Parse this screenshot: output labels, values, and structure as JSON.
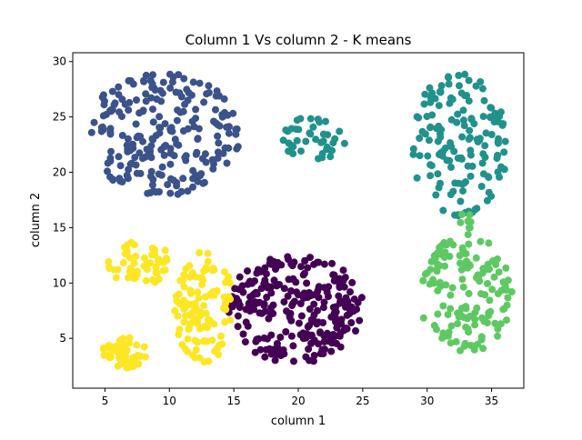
{
  "chart_data": {
    "type": "scatter",
    "title": "Column 1 Vs column 2 - K means",
    "xlabel": "column 1",
    "ylabel": "column 2",
    "xlim": [
      2.5,
      37.5
    ],
    "ylim": [
      0.5,
      30.8
    ],
    "xticks": [
      5,
      10,
      15,
      20,
      25,
      30,
      35
    ],
    "yticks": [
      5,
      10,
      15,
      20,
      25,
      30
    ],
    "grid": false,
    "series": [
      {
        "name": "",
        "color": "#440154",
        "blobs": [
          {
            "cx": 19.8,
            "cy": 7.7,
            "rx": 5.3,
            "ry": 5.0,
            "n": 260
          }
        ]
      },
      {
        "name": "",
        "color": "#3b528b",
        "blobs": [
          {
            "cx": 9.5,
            "cy": 23.5,
            "rx": 6.0,
            "ry": 5.6,
            "n": 230
          }
        ]
      },
      {
        "name": "",
        "color": "#21918c",
        "blobs": [
          {
            "cx": 21.5,
            "cy": 23.0,
            "rx": 2.8,
            "ry": 2.2,
            "n": 40
          },
          {
            "cx": 32.5,
            "cy": 22.5,
            "rx": 3.8,
            "ry": 6.5,
            "n": 150
          }
        ]
      },
      {
        "name": "",
        "color": "#5ec962",
        "blobs": [
          {
            "cx": 33.0,
            "cy": 9.0,
            "rx": 3.6,
            "ry": 5.3,
            "n": 140
          },
          {
            "cx": 33.0,
            "cy": 15.2,
            "rx": 0.5,
            "ry": 1.4,
            "n": 8
          }
        ]
      },
      {
        "name": "",
        "color": "#fde725",
        "blobs": [
          {
            "cx": 7.7,
            "cy": 11.8,
            "rx": 2.5,
            "ry": 2.0,
            "n": 55
          },
          {
            "cx": 6.5,
            "cy": 3.8,
            "rx": 1.8,
            "ry": 1.5,
            "n": 50
          },
          {
            "cx": 12.6,
            "cy": 7.8,
            "rx": 2.4,
            "ry": 5.0,
            "n": 110
          }
        ]
      }
    ]
  }
}
